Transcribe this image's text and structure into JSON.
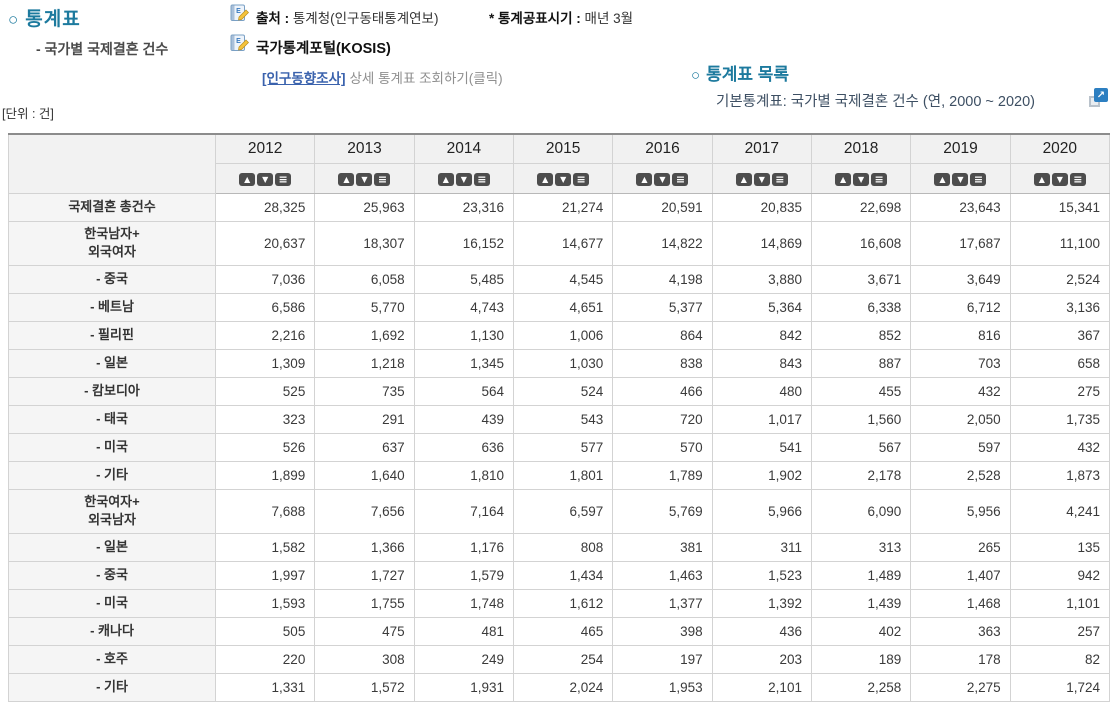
{
  "header": {
    "section_bullet": "○",
    "section_title": "통계표",
    "section_subtitle": "- 국가별 국제결혼 건수",
    "source_label": "출처 :",
    "source_value": "통계청(인구동태통계연보)",
    "publish_label": "* 통계공표시기 :",
    "publish_value": "매년 3월",
    "portal_label": "국가통계포털(KOSIS)",
    "detail_link_label": "[인구동향조사]",
    "detail_link_suffix": "상세 통계표 조회하기(클릭)",
    "list_bullet": "○",
    "list_title": "통계표 목록",
    "list_item": "기본통계표: 국가별 국제결혼 건수 (연, 2000 ~ 2020)",
    "unit_label": "[단위 : 건]"
  },
  "colors": {
    "section_title_teal": "#1d7a9e",
    "link_blue": "#3a62ad",
    "list_item_navy": "#3d4f63",
    "sort_button_bg": "#4d4d4d",
    "external_link_icon_bg": "#2d7fc1",
    "header_bg": "#f1f1f1",
    "row_label_bg": "#f5f5f5"
  },
  "icons": {
    "source_icon": "document-pencil-icon",
    "portal_icon": "document-pencil-icon",
    "external_link_icon": "external-link-arrow-icon"
  },
  "table": {
    "corner_label": "",
    "years": [
      "2012",
      "2013",
      "2014",
      "2015",
      "2016",
      "2017",
      "2018",
      "2019",
      "2020"
    ],
    "sort_glyphs": {
      "asc": "▲",
      "desc": "▼",
      "menu": "≡"
    },
    "rows": [
      {
        "label": "국제결혼 총건수",
        "values": [
          "28,325",
          "25,963",
          "23,316",
          "21,274",
          "20,591",
          "20,835",
          "22,698",
          "23,643",
          "15,341"
        ]
      },
      {
        "label": "한국남자+\n외국여자",
        "values": [
          "20,637",
          "18,307",
          "16,152",
          "14,677",
          "14,822",
          "14,869",
          "16,608",
          "17,687",
          "11,100"
        ]
      },
      {
        "label": "- 중국",
        "values": [
          "7,036",
          "6,058",
          "5,485",
          "4,545",
          "4,198",
          "3,880",
          "3,671",
          "3,649",
          "2,524"
        ]
      },
      {
        "label": "- 베트남",
        "values": [
          "6,586",
          "5,770",
          "4,743",
          "4,651",
          "5,377",
          "5,364",
          "6,338",
          "6,712",
          "3,136"
        ]
      },
      {
        "label": "- 필리핀",
        "values": [
          "2,216",
          "1,692",
          "1,130",
          "1,006",
          "864",
          "842",
          "852",
          "816",
          "367"
        ]
      },
      {
        "label": "- 일본",
        "values": [
          "1,309",
          "1,218",
          "1,345",
          "1,030",
          "838",
          "843",
          "887",
          "703",
          "658"
        ]
      },
      {
        "label": "- 캄보디아",
        "values": [
          "525",
          "735",
          "564",
          "524",
          "466",
          "480",
          "455",
          "432",
          "275"
        ]
      },
      {
        "label": "- 태국",
        "values": [
          "323",
          "291",
          "439",
          "543",
          "720",
          "1,017",
          "1,560",
          "2,050",
          "1,735"
        ]
      },
      {
        "label": "- 미국",
        "values": [
          "526",
          "637",
          "636",
          "577",
          "570",
          "541",
          "567",
          "597",
          "432"
        ]
      },
      {
        "label": "- 기타",
        "values": [
          "1,899",
          "1,640",
          "1,810",
          "1,801",
          "1,789",
          "1,902",
          "2,178",
          "2,528",
          "1,873"
        ]
      },
      {
        "label": "한국여자+\n외국남자",
        "values": [
          "7,688",
          "7,656",
          "7,164",
          "6,597",
          "5,769",
          "5,966",
          "6,090",
          "5,956",
          "4,241"
        ]
      },
      {
        "label": "- 일본",
        "values": [
          "1,582",
          "1,366",
          "1,176",
          "808",
          "381",
          "311",
          "313",
          "265",
          "135"
        ]
      },
      {
        "label": "- 중국",
        "values": [
          "1,997",
          "1,727",
          "1,579",
          "1,434",
          "1,463",
          "1,523",
          "1,489",
          "1,407",
          "942"
        ]
      },
      {
        "label": "- 미국",
        "values": [
          "1,593",
          "1,755",
          "1,748",
          "1,612",
          "1,377",
          "1,392",
          "1,439",
          "1,468",
          "1,101"
        ]
      },
      {
        "label": "- 캐나다",
        "values": [
          "505",
          "475",
          "481",
          "465",
          "398",
          "436",
          "402",
          "363",
          "257"
        ]
      },
      {
        "label": "- 호주",
        "values": [
          "220",
          "308",
          "249",
          "254",
          "197",
          "203",
          "189",
          "178",
          "82"
        ]
      },
      {
        "label": "- 기타",
        "values": [
          "1,331",
          "1,572",
          "1,931",
          "2,024",
          "1,953",
          "2,101",
          "2,258",
          "2,275",
          "1,724"
        ]
      }
    ]
  }
}
